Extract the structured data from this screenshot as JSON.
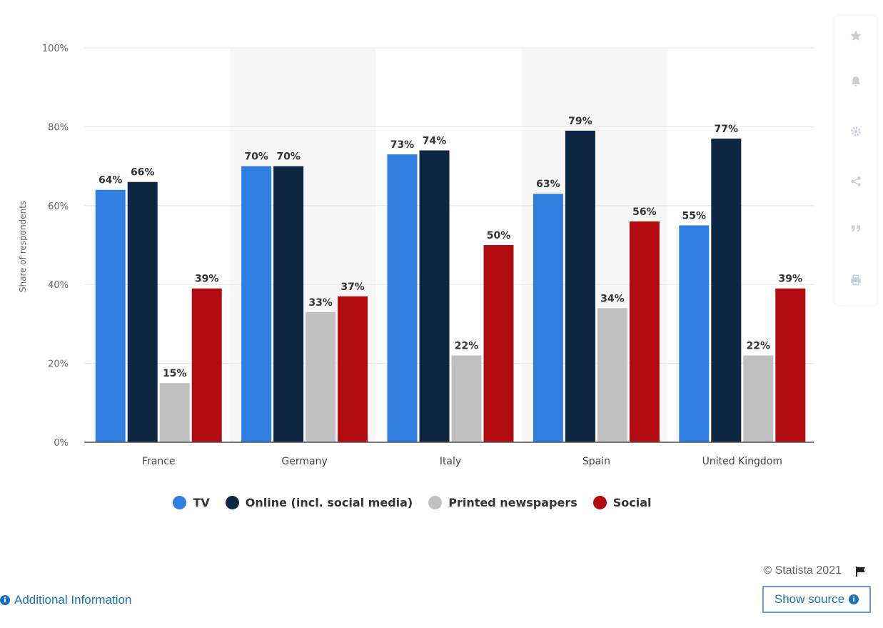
{
  "chart_data": {
    "type": "bar",
    "categories": [
      "France",
      "Germany",
      "Italy",
      "Spain",
      "United Kingdom"
    ],
    "series": [
      {
        "name": "TV",
        "color": "#2f7ee0",
        "values": [
          64,
          70,
          73,
          63,
          55
        ]
      },
      {
        "name": "Online (incl. social media)",
        "color": "#0e2843",
        "values": [
          66,
          70,
          74,
          79,
          77
        ]
      },
      {
        "name": "Printed newspapers",
        "color": "#c0c0c0",
        "values": [
          15,
          33,
          22,
          34,
          22
        ]
      },
      {
        "name": "Social",
        "color": "#b20c10",
        "values": [
          39,
          37,
          50,
          56,
          39
        ]
      }
    ],
    "ylabel": "Share of respondents",
    "ylim": [
      0,
      100
    ],
    "yticks": [
      "0%",
      "20%",
      "40%",
      "60%",
      "80%",
      "100%"
    ],
    "value_suffix": "%",
    "grid": true,
    "legend_position": "bottom"
  },
  "sidebar": {
    "icons": [
      "star-icon",
      "bell-icon",
      "gear-icon",
      "share-icon",
      "quote-icon",
      "print-icon"
    ]
  },
  "footer": {
    "copyright": "© Statista 2021",
    "additional_info": "Additional Information",
    "show_source": "Show source"
  }
}
